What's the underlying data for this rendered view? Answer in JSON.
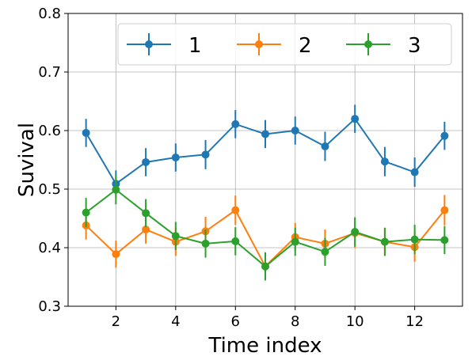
{
  "chart_data": {
    "type": "line",
    "title": "",
    "xlabel": "Time index",
    "ylabel": "Suvival",
    "xlim": [
      0.4,
      13.6
    ],
    "ylim": [
      0.3,
      0.8
    ],
    "xticks": [
      2,
      4,
      6,
      8,
      10,
      12
    ],
    "yticks": [
      0.3,
      0.4,
      0.5,
      0.6,
      0.7,
      0.8
    ],
    "xtick_labels": [
      "2",
      "4",
      "6",
      "8",
      "10",
      "12"
    ],
    "ytick_labels": [
      "0.3",
      "0.4",
      "0.5",
      "0.6",
      "0.7",
      "0.8"
    ],
    "grid": true,
    "legend_position": "top",
    "x": [
      1,
      2,
      3,
      4,
      5,
      6,
      7,
      8,
      9,
      10,
      11,
      12,
      13
    ],
    "series": [
      {
        "name": "1",
        "color": "#1f77b4",
        "values": [
          0.596,
          0.509,
          0.546,
          0.554,
          0.559,
          0.611,
          0.594,
          0.6,
          0.573,
          0.62,
          0.547,
          0.529,
          0.591
        ],
        "errors": [
          0.024,
          0.023,
          0.024,
          0.024,
          0.025,
          0.024,
          0.024,
          0.024,
          0.025,
          0.024,
          0.025,
          0.025,
          0.024
        ]
      },
      {
        "name": "2",
        "color": "#ff7f0e",
        "values": [
          0.438,
          0.389,
          0.431,
          0.41,
          0.428,
          0.464,
          0.368,
          0.418,
          0.407,
          0.425,
          0.41,
          0.401,
          0.464
        ],
        "errors": [
          0.024,
          0.023,
          0.024,
          0.024,
          0.025,
          0.025,
          0.024,
          0.024,
          0.024,
          0.025,
          0.024,
          0.025,
          0.026
        ]
      },
      {
        "name": "3",
        "color": "#2ca02c",
        "values": [
          0.46,
          0.499,
          0.459,
          0.42,
          0.407,
          0.411,
          0.368,
          0.41,
          0.393,
          0.427,
          0.41,
          0.414,
          0.413
        ],
        "errors": [
          0.025,
          0.025,
          0.024,
          0.024,
          0.024,
          0.024,
          0.024,
          0.024,
          0.024,
          0.025,
          0.024,
          0.025,
          0.024
        ]
      }
    ]
  }
}
